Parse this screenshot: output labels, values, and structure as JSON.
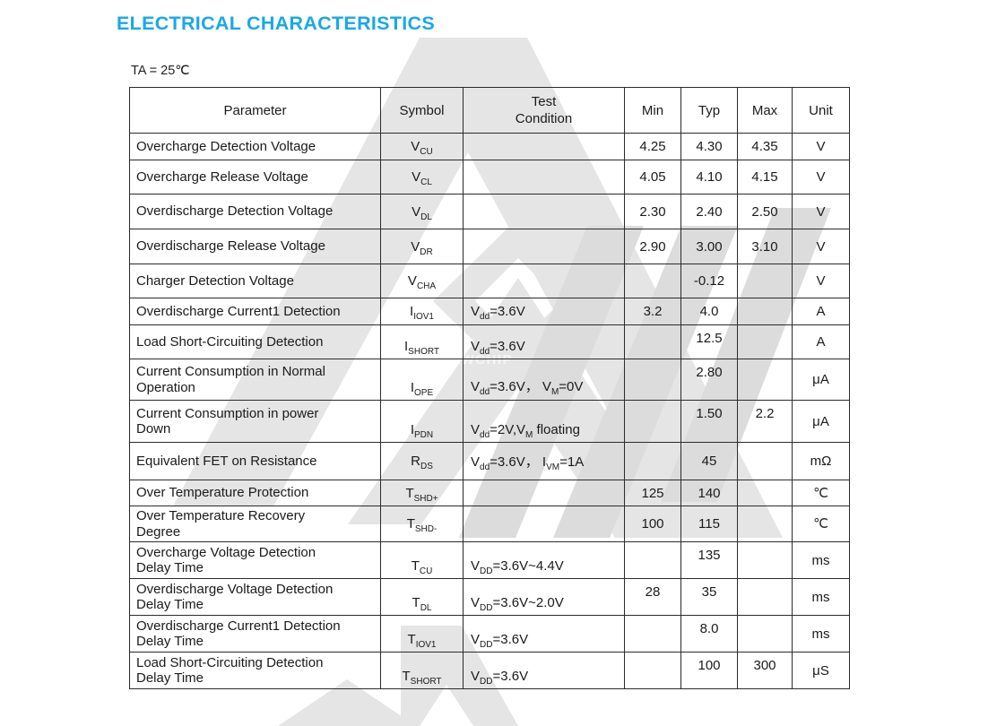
{
  "page": {
    "title": "ELECTRICAL CHARACTERISTICS",
    "condition_note": "TA = 25℃"
  },
  "colors": {
    "title": "#18A8E9",
    "text": "#1A1A1A",
    "table_border": "#2B2B2B",
    "watermark": "#E5E5E5",
    "watermark_dark": "#DCDCDC"
  },
  "watermark": {
    "ghost_text": "AWCHIP"
  },
  "table": {
    "columns": [
      "Parameter",
      "Symbol",
      "Test\nCondition",
      "Min",
      "Typ",
      "Max",
      "Unit"
    ],
    "rows": [
      {
        "parameter": "Overcharge Detection Voltage",
        "symbol": "V{CU}",
        "condition": "",
        "min": "4.25",
        "typ": "4.30",
        "max": "4.35",
        "unit": "V"
      },
      {
        "parameter": "Overcharge Release Voltage",
        "symbol": "V{CL}",
        "condition": "",
        "min": "4.05",
        "typ": "4.10",
        "max": "4.15",
        "unit": "V"
      },
      {
        "parameter": "Overdischarge Detection Voltage",
        "symbol": "V{DL}",
        "condition": "",
        "min": "2.30",
        "typ": "2.40",
        "max": "2.50",
        "unit": "V"
      },
      {
        "parameter": "Overdischarge Release Voltage",
        "symbol": "V{DR}",
        "condition": "",
        "min": "2.90",
        "typ": "3.00",
        "max": "3.10",
        "unit": "V"
      },
      {
        "parameter": "Charger Detection Voltage",
        "symbol": "V{CHA}",
        "condition": "",
        "min": "",
        "typ": "-0.12",
        "max": "",
        "unit": "V"
      },
      {
        "parameter": "Overdischarge Current1 Detection",
        "symbol": "I{IOV1}",
        "condition": "V{dd}=3.6V",
        "min": "3.2",
        "typ": "4.0",
        "max": "",
        "unit": "A"
      },
      {
        "parameter": "Load Short-Circuiting Detection",
        "symbol": "I{SHORT}",
        "condition": "V{dd}=3.6V",
        "min": "",
        "typ": "12.5",
        "max": "",
        "unit": "A"
      },
      {
        "parameter": "Current Consumption in Normal\nOperation",
        "symbol": "I{OPE}",
        "condition": "V{dd}=3.6V， V{M}=0V",
        "min": "",
        "typ": "2.80",
        "max": "",
        "unit": "μA"
      },
      {
        "parameter": "Current Consumption in power\nDown",
        "symbol": "I{PDN}",
        "condition": "V{dd}=2V,V{M} floating",
        "min": "",
        "typ": "1.50",
        "max": "2.2",
        "unit": "μA"
      },
      {
        "parameter": "Equivalent FET on Resistance",
        "symbol": "R{DS}",
        "condition": "V{dd}=3.6V， I{VM}=1A",
        "min": "",
        "typ": "45",
        "max": "",
        "unit": "mΩ"
      },
      {
        "parameter": "Over Temperature Protection",
        "symbol": "T{SHD+}",
        "condition": "",
        "min": "125",
        "typ": "140",
        "max": "",
        "unit": "℃"
      },
      {
        "parameter": "Over Temperature Recovery\nDegree",
        "symbol": "T{SHD-}",
        "condition": "",
        "min": "100",
        "typ": "115",
        "max": "",
        "unit": "℃"
      },
      {
        "parameter": "Overcharge Voltage Detection\nDelay Time",
        "symbol": "T{CU}",
        "condition": "V{DD}=3.6V~4.4V",
        "min": "",
        "typ": "135",
        "max": "",
        "unit": "ms"
      },
      {
        "parameter": "Overdischarge Voltage Detection\nDelay Time",
        "symbol": "T{DL}",
        "condition": "V{DD}=3.6V~2.0V",
        "min": "28",
        "typ": "35",
        "max": "",
        "unit": "ms"
      },
      {
        "parameter": "Overdischarge Current1 Detection\nDelay Time",
        "symbol": "T{IOV1}",
        "condition": "V{DD}=3.6V",
        "min": "",
        "typ": "8.0",
        "max": "",
        "unit": "ms"
      },
      {
        "parameter": "Load Short-Circuiting Detection\nDelay Time",
        "symbol": "T{SHORT}",
        "condition": "V{DD}=3.6V",
        "min": "",
        "typ": "100",
        "max": "300",
        "unit": "μS"
      }
    ]
  }
}
